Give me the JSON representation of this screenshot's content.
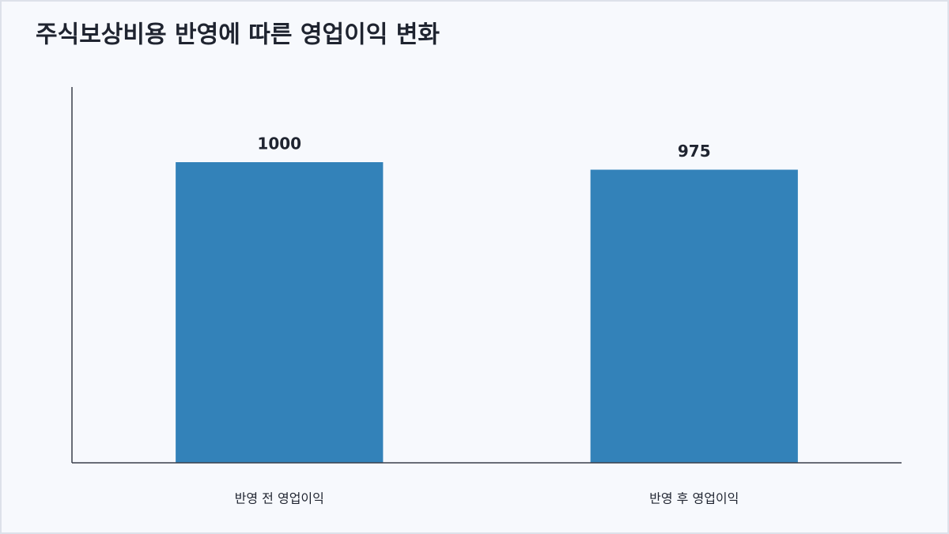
{
  "chart_data": {
    "type": "bar",
    "title": "주식보상비용 반영에 따른 영업이익 변화",
    "categories": [
      "반영 전 영업이익",
      "반영 후 영업이익"
    ],
    "values": [
      1000,
      975
    ],
    "color": "#3382b9",
    "ylim": [
      0,
      1250
    ],
    "grid": false
  }
}
